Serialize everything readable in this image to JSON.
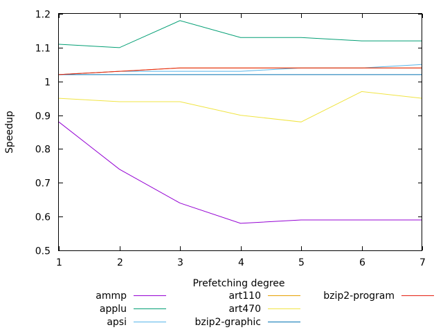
{
  "chart_data": {
    "type": "line",
    "title": "",
    "xlabel": "Prefetching degree",
    "ylabel": "Speedup",
    "x": [
      1,
      2,
      3,
      4,
      5,
      6,
      7
    ],
    "xlim": [
      1,
      7
    ],
    "ylim": [
      0.5,
      1.2
    ],
    "x_ticks": [
      "1",
      "2",
      "3",
      "4",
      "5",
      "6",
      "7"
    ],
    "y_ticks": [
      "0.5",
      "0.6",
      "0.7",
      "0.8",
      "0.9",
      "1",
      "1.1",
      "1.2"
    ],
    "grid": false,
    "legend_position": "below plot, three columns",
    "series": [
      {
        "name": "ammp",
        "color": "#9400d3",
        "values": [
          0.88,
          0.74,
          0.64,
          0.58,
          0.59,
          0.59,
          0.59
        ]
      },
      {
        "name": "applu",
        "color": "#009e73",
        "values": [
          1.11,
          1.1,
          1.18,
          1.13,
          1.13,
          1.12,
          1.12
        ]
      },
      {
        "name": "apsi",
        "color": "#56b4e9",
        "values": [
          1.02,
          1.03,
          1.03,
          1.03,
          1.04,
          1.04,
          1.05
        ]
      },
      {
        "name": "art110",
        "color": "#e69f00",
        "values": [
          1.02,
          1.03,
          1.04,
          1.04,
          1.04,
          1.04,
          1.04
        ]
      },
      {
        "name": "art470",
        "color": "#f0e442",
        "values": [
          0.95,
          0.94,
          0.94,
          0.9,
          0.88,
          0.97,
          0.95
        ]
      },
      {
        "name": "bzip2-graphic",
        "color": "#0072b2",
        "values": [
          1.02,
          1.02,
          1.02,
          1.02,
          1.02,
          1.02,
          1.02
        ]
      },
      {
        "name": "bzip2-program",
        "color": "#e51e10",
        "values": [
          1.02,
          1.03,
          1.04,
          1.04,
          1.04,
          1.04,
          1.04
        ]
      }
    ]
  }
}
